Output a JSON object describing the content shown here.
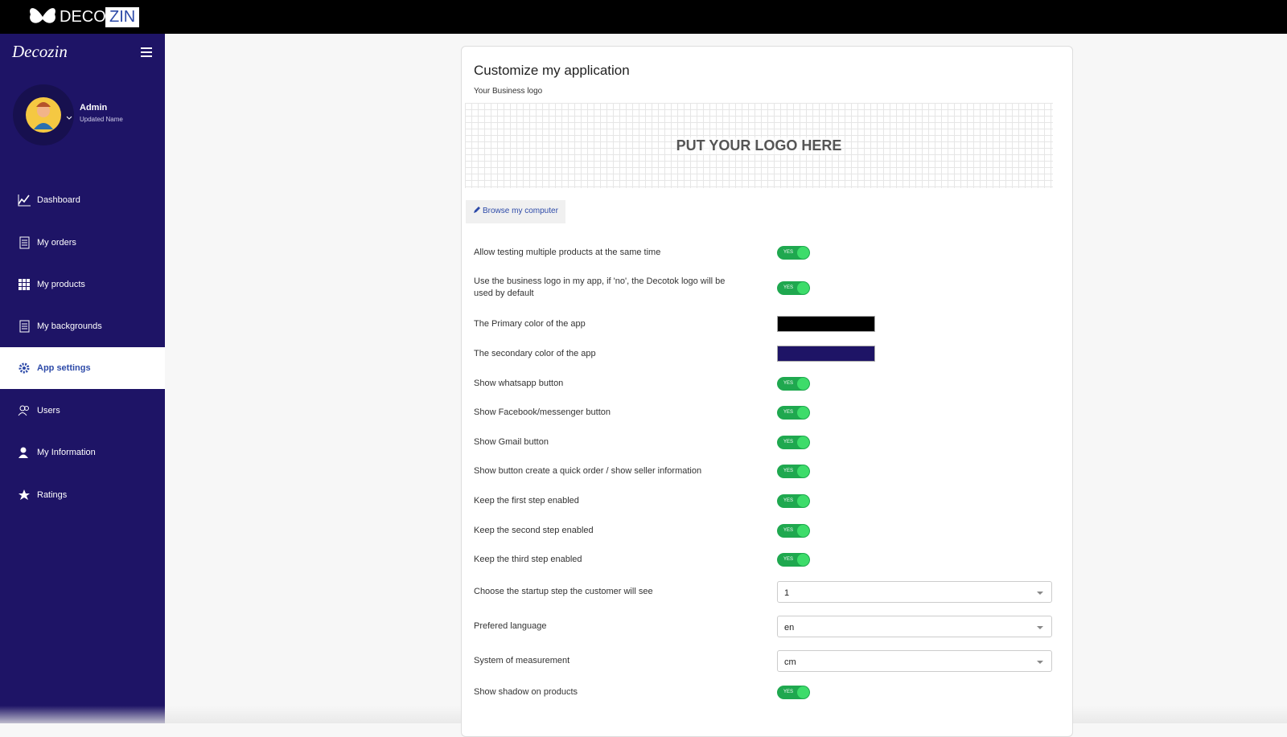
{
  "header": {
    "brand_left": "DECO",
    "brand_right": "ZIN"
  },
  "sidebar": {
    "title": "Decozin",
    "user_name": "Admin",
    "user_subtitle": "Updated Name",
    "nav": [
      {
        "label": "Dashboard",
        "active": false
      },
      {
        "label": "My orders",
        "active": false
      },
      {
        "label": "My products",
        "active": false
      },
      {
        "label": "My backgrounds",
        "active": false
      },
      {
        "label": "App settings",
        "active": true
      },
      {
        "label": "Users",
        "active": false
      },
      {
        "label": "My Information",
        "active": false
      },
      {
        "label": "Ratings",
        "active": false
      }
    ]
  },
  "panel": {
    "title": "Customize my application",
    "logo_label": "Your Business logo",
    "logo_placeholder": "PUT YOUR LOGO HERE",
    "browse_button": "Browse my computer",
    "settings": [
      {
        "label": "Allow testing multiple products at the same time",
        "control": "toggle",
        "value": "YES"
      },
      {
        "label": "Use the business logo in my app, if 'no', the Decotok logo will be used by default",
        "control": "toggle",
        "value": "YES"
      },
      {
        "label": "The Primary color of the app",
        "control": "color",
        "value": "#000000"
      },
      {
        "label": "The secondary color of the app",
        "control": "color",
        "value": "#1e1466"
      },
      {
        "label": "Show whatsapp button",
        "control": "toggle",
        "value": "YES"
      },
      {
        "label": "Show Facebook/messenger button",
        "control": "toggle",
        "value": "YES"
      },
      {
        "label": "Show Gmail button",
        "control": "toggle",
        "value": "YES"
      },
      {
        "label": "Show button create a quick order / show seller information",
        "control": "toggle",
        "value": "YES"
      },
      {
        "label": "Keep the first step enabled",
        "control": "toggle",
        "value": "YES"
      },
      {
        "label": "Keep the second step enabled",
        "control": "toggle",
        "value": "YES"
      },
      {
        "label": "Keep the third step enabled",
        "control": "toggle",
        "value": "YES"
      },
      {
        "label": "Choose the startup step the customer will see",
        "control": "select",
        "value": "1"
      },
      {
        "label": "Prefered language",
        "control": "select",
        "value": "en"
      },
      {
        "label": "System of measurement",
        "control": "select",
        "value": "cm"
      },
      {
        "label": "Show shadow on products",
        "control": "toggle",
        "value": "YES"
      }
    ]
  }
}
